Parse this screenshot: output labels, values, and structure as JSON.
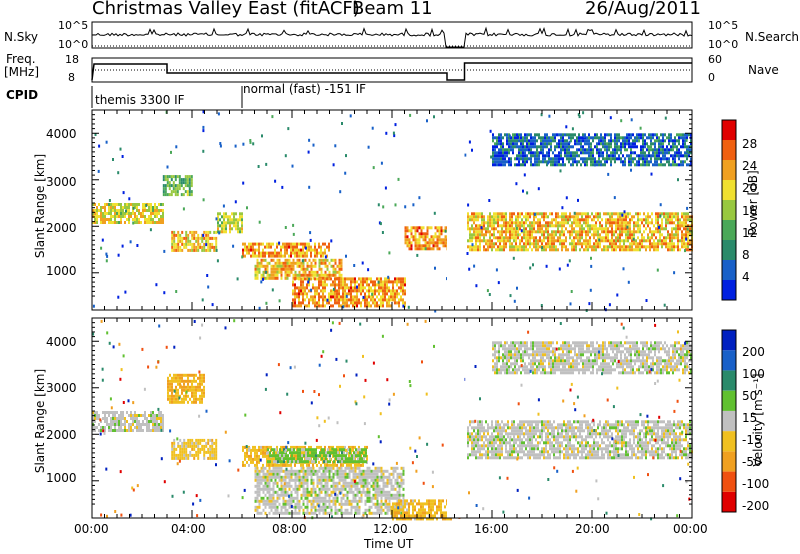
{
  "header": {
    "title": "Christmas Valley East (fitACF)",
    "beam": "Beam 11",
    "date": "26/Aug/2011"
  },
  "panels": {
    "nsky": {
      "label": "N.Sky",
      "ticks": [
        "10^5",
        "10^0"
      ]
    },
    "nsearch": {
      "label": "N.Search",
      "ticks": [
        "10^5",
        "10^0"
      ]
    },
    "freq": {
      "label_line1": "Freq.",
      "label_line2": "[MHz]",
      "ticks": [
        "18",
        "8"
      ]
    },
    "nave": {
      "label": "Nave",
      "ticks": [
        "60",
        "0"
      ]
    },
    "cpid": {
      "label": "CPID",
      "entries": [
        "themis 3300 IF",
        "normal (fast) -151 IF"
      ]
    }
  },
  "axes": {
    "ylabel": "Slant Range [km]",
    "xlabel": "Time UT",
    "yticks": [
      "4000",
      "3000",
      "2000",
      "1000"
    ],
    "xticks": [
      "00:00",
      "04:00",
      "08:00",
      "12:00",
      "16:00",
      "20:00",
      "00:00"
    ]
  },
  "colorbars": {
    "power": {
      "label": "Power [dB]",
      "ticks": [
        "28",
        "24",
        "20",
        "16",
        "12",
        "8",
        "4"
      ]
    },
    "velocity": {
      "label": "Velocity [m s⁻¹]",
      "ticks": [
        "200",
        "100",
        "50",
        "15",
        "-15",
        "-50",
        "-100",
        "-200"
      ]
    }
  },
  "chart_data": [
    {
      "type": "heatmap",
      "title": "Power",
      "xlabel": "Time UT",
      "ylabel": "Slant Range [km]",
      "xlim": [
        "00:00",
        "24:00"
      ],
      "ylim": [
        200,
        4500
      ],
      "colorbar": {
        "label": "Power [dB]",
        "range": [
          0,
          30
        ]
      },
      "echo_bands": [
        {
          "time": [
            "00:00",
            "02:50"
          ],
          "range_km": [
            2100,
            2500
          ],
          "power_db": 18
        },
        {
          "time": [
            "03:10",
            "05:00"
          ],
          "range_km": [
            1500,
            1900
          ],
          "power_db": 20
        },
        {
          "time": [
            "05:00",
            "06:00"
          ],
          "range_km": [
            1900,
            2300
          ],
          "power_db": 16
        },
        {
          "time": [
            "06:00",
            "09:30"
          ],
          "range_km": [
            1350,
            1650
          ],
          "power_db": 22
        },
        {
          "time": [
            "06:30",
            "10:00"
          ],
          "range_km": [
            900,
            1300
          ],
          "power_db": 20
        },
        {
          "time": [
            "08:00",
            "12:30"
          ],
          "range_km": [
            300,
            900
          ],
          "power_db": 22
        },
        {
          "time": [
            "12:30",
            "14:20"
          ],
          "range_km": [
            1500,
            2000
          ],
          "power_db": 22
        },
        {
          "time": [
            "15:00",
            "24:00"
          ],
          "range_km": [
            1500,
            2300
          ],
          "power_db": 20
        },
        {
          "time": [
            "02:50",
            "04:00"
          ],
          "range_km": [
            2700,
            3100
          ],
          "power_db": 12
        },
        {
          "time": [
            "16:00",
            "24:00"
          ],
          "range_km": [
            3300,
            4000
          ],
          "power_db": 6
        }
      ]
    },
    {
      "type": "heatmap",
      "title": "Velocity",
      "xlabel": "Time UT",
      "ylabel": "Slant Range [km]",
      "xlim": [
        "00:00",
        "24:00"
      ],
      "ylim": [
        200,
        4500
      ],
      "colorbar": {
        "label": "Velocity [m s⁻¹]",
        "range": [
          -200,
          200
        ]
      },
      "echo_bands": [
        {
          "time": [
            "00:00",
            "02:50"
          ],
          "range_km": [
            2100,
            2500
          ],
          "velocity_ms": 0
        },
        {
          "time": [
            "03:10",
            "05:00"
          ],
          "range_km": [
            1500,
            1900
          ],
          "velocity_ms": -40
        },
        {
          "time": [
            "03:00",
            "04:30"
          ],
          "range_km": [
            2700,
            3300
          ],
          "velocity_ms": -60
        },
        {
          "time": [
            "06:00",
            "11:00"
          ],
          "range_km": [
            1300,
            1750
          ],
          "velocity_ms": -50
        },
        {
          "time": [
            "07:00",
            "11:00"
          ],
          "range_km": [
            1400,
            1700
          ],
          "velocity_ms": 40
        },
        {
          "time": [
            "06:30",
            "12:30"
          ],
          "range_km": [
            300,
            1300
          ],
          "velocity_ms": 0
        },
        {
          "time": [
            "12:00",
            "14:30"
          ],
          "range_km": [
            200,
            600
          ],
          "velocity_ms": -50
        },
        {
          "time": [
            "15:00",
            "24:00"
          ],
          "range_km": [
            1500,
            2300
          ],
          "velocity_ms": 0
        },
        {
          "time": [
            "16:00",
            "24:00"
          ],
          "range_km": [
            3300,
            4000
          ],
          "velocity_ms": 0
        }
      ]
    }
  ]
}
